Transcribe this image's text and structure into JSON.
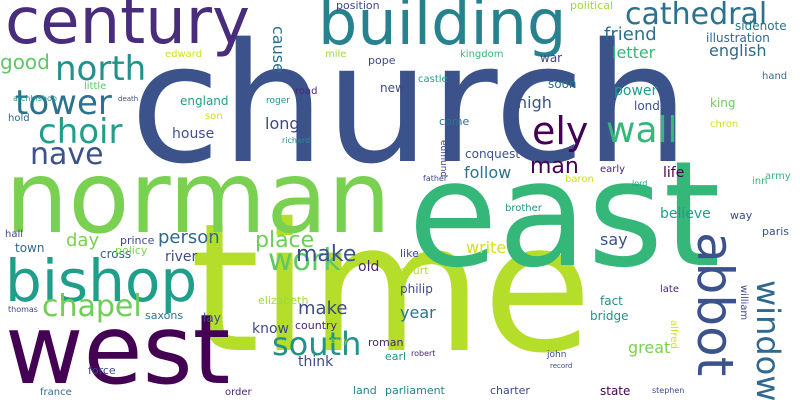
{
  "words": [
    {
      "text": "church",
      "color": "#3b528b",
      "vertical": false
    },
    {
      "text": "time",
      "color": "#b5de2b",
      "vertical": false
    },
    {
      "text": "norman",
      "color": "#7ad151",
      "vertical": false
    },
    {
      "text": "east",
      "color": "#35b779",
      "vertical": false
    },
    {
      "text": "west",
      "color": "#440154",
      "vertical": false
    },
    {
      "text": "building",
      "color": "#26828e",
      "vertical": false
    },
    {
      "text": "century",
      "color": "#472d7b",
      "vertical": false
    },
    {
      "text": "bishop",
      "color": "#1f9e89",
      "vertical": false
    },
    {
      "text": "abbot",
      "color": "#3b528b",
      "vertical": true
    },
    {
      "text": "cathedral",
      "color": "#2c728e",
      "vertical": false
    },
    {
      "text": "window",
      "color": "#31688e",
      "vertical": true
    },
    {
      "text": "north",
      "color": "#21918c",
      "vertical": false
    },
    {
      "text": "tower",
      "color": "#2c728e",
      "vertical": false
    },
    {
      "text": "choir",
      "color": "#1f9e89",
      "vertical": false
    },
    {
      "text": "nave",
      "color": "#3b528b",
      "vertical": false
    },
    {
      "text": "chapel",
      "color": "#6ece58",
      "vertical": false
    },
    {
      "text": "south",
      "color": "#21918c",
      "vertical": false
    },
    {
      "text": "work",
      "color": "#5ec962",
      "vertical": false
    },
    {
      "text": "wall",
      "color": "#35b779",
      "vertical": false
    },
    {
      "text": "ely",
      "color": "#440154",
      "vertical": false
    },
    {
      "text": "good",
      "color": "#5ec962",
      "vertical": false
    },
    {
      "text": "place",
      "color": "#6ece58",
      "vertical": false
    },
    {
      "text": "person",
      "color": "#31688e",
      "vertical": false
    },
    {
      "text": "make",
      "color": "#3e4989",
      "vertical": false
    },
    {
      "text": "make",
      "color": "#3b528b",
      "vertical": false
    },
    {
      "text": "day",
      "color": "#7ad151",
      "vertical": false
    },
    {
      "text": "friend",
      "color": "#2c728e",
      "vertical": false
    },
    {
      "text": "english",
      "color": "#31688e",
      "vertical": false
    },
    {
      "text": "letter",
      "color": "#35b779",
      "vertical": false
    },
    {
      "text": "cause",
      "color": "#2c728e",
      "vertical": true
    },
    {
      "text": "illustration",
      "color": "#31688e",
      "vertical": false
    },
    {
      "text": "sidenote",
      "color": "#2c728e",
      "vertical": false
    },
    {
      "text": "position",
      "color": "#3e4989",
      "vertical": false
    },
    {
      "text": "political",
      "color": "#a0da39",
      "vertical": false
    },
    {
      "text": "edward",
      "color": "#d2e21b",
      "vertical": false
    },
    {
      "text": "mile",
      "color": "#a0da39",
      "vertical": false
    },
    {
      "text": "pope",
      "color": "#3e4989",
      "vertical": false
    },
    {
      "text": "castle",
      "color": "#1fa187",
      "vertical": false
    },
    {
      "text": "kingdom",
      "color": "#35b779",
      "vertical": false
    },
    {
      "text": "war",
      "color": "#3e4989",
      "vertical": false
    },
    {
      "text": "hand",
      "color": "#2c728e",
      "vertical": false
    },
    {
      "text": "new",
      "color": "#3e4989",
      "vertical": false
    },
    {
      "text": "soon",
      "color": "#2c728e",
      "vertical": false
    },
    {
      "text": "little",
      "color": "#5ec962",
      "vertical": false
    },
    {
      "text": "archbishop",
      "color": "#21918c",
      "vertical": false
    },
    {
      "text": "road",
      "color": "#482677",
      "vertical": false
    },
    {
      "text": "power",
      "color": "#1f9e89",
      "vertical": false
    },
    {
      "text": "king",
      "color": "#6ece58",
      "vertical": false
    },
    {
      "text": "england",
      "color": "#1fa187",
      "vertical": false
    },
    {
      "text": "son",
      "color": "#d2e21b",
      "vertical": false
    },
    {
      "text": "hold",
      "color": "#31688e",
      "vertical": false
    },
    {
      "text": "long",
      "color": "#404688",
      "vertical": false
    },
    {
      "text": "high",
      "color": "#3b528b",
      "vertical": false
    },
    {
      "text": "london",
      "color": "#3b528b",
      "vertical": false
    },
    {
      "text": "chron",
      "color": "#d2e21b",
      "vertical": false
    },
    {
      "text": "house",
      "color": "#3b528b",
      "vertical": false
    },
    {
      "text": "come",
      "color": "#2c728e",
      "vertical": false
    },
    {
      "text": "conquest",
      "color": "#3b528b",
      "vertical": false
    },
    {
      "text": "man",
      "color": "#440154",
      "vertical": false
    },
    {
      "text": "follow",
      "color": "#2c728e",
      "vertical": false
    },
    {
      "text": "early",
      "color": "#482677",
      "vertical": false
    },
    {
      "text": "baron",
      "color": "#d2e21b",
      "vertical": false
    },
    {
      "text": "life",
      "color": "#440154",
      "vertical": false
    },
    {
      "text": "army",
      "color": "#35b779",
      "vertical": false
    },
    {
      "text": "inn",
      "color": "#35b779",
      "vertical": false
    },
    {
      "text": "brother",
      "color": "#21918c",
      "vertical": false
    },
    {
      "text": "believe",
      "color": "#1f9e89",
      "vertical": false
    },
    {
      "text": "way",
      "color": "#3e4989",
      "vertical": false
    },
    {
      "text": "paris",
      "color": "#3b528b",
      "vertical": false
    },
    {
      "text": "say",
      "color": "#3b528b",
      "vertical": false
    },
    {
      "text": "write",
      "color": "#d2e21b",
      "vertical": false
    },
    {
      "text": "town",
      "color": "#31688e",
      "vertical": false
    },
    {
      "text": "cross",
      "color": "#355f8d",
      "vertical": false
    },
    {
      "text": "prince",
      "color": "#3e4989",
      "vertical": false
    },
    {
      "text": "policy",
      "color": "#7ad151",
      "vertical": false
    },
    {
      "text": "river",
      "color": "#3e4989",
      "vertical": false
    },
    {
      "text": "old",
      "color": "#482677",
      "vertical": false
    },
    {
      "text": "like",
      "color": "#3e4989",
      "vertical": false
    },
    {
      "text": "court",
      "color": "#b5de2b",
      "vertical": false
    },
    {
      "text": "philip",
      "color": "#3e4989",
      "vertical": false
    },
    {
      "text": "year",
      "color": "#2c728e",
      "vertical": false
    },
    {
      "text": "fact",
      "color": "#21918c",
      "vertical": false
    },
    {
      "text": "bridge",
      "color": "#21918c",
      "vertical": false
    },
    {
      "text": "late",
      "color": "#482677",
      "vertical": false
    },
    {
      "text": "william",
      "color": "#3e4989",
      "vertical": true
    },
    {
      "text": "alfred",
      "color": "#d2e21b",
      "vertical": true
    },
    {
      "text": "great",
      "color": "#7ad151",
      "vertical": false
    },
    {
      "text": "elizabeth",
      "color": "#a0da39",
      "vertical": false
    },
    {
      "text": "country",
      "color": "#482677",
      "vertical": false
    },
    {
      "text": "lay",
      "color": "#3e4989",
      "vertical": false
    },
    {
      "text": "saxons",
      "color": "#2c728e",
      "vertical": false
    },
    {
      "text": "know",
      "color": "#3e4989",
      "vertical": false
    },
    {
      "text": "think",
      "color": "#3e4989",
      "vertical": false
    },
    {
      "text": "roman",
      "color": "#482677",
      "vertical": false
    },
    {
      "text": "earl",
      "color": "#21918c",
      "vertical": false
    },
    {
      "text": "force",
      "color": "#3e4989",
      "vertical": false
    },
    {
      "text": "france",
      "color": "#2c728e",
      "vertical": false
    },
    {
      "text": "order",
      "color": "#482677",
      "vertical": false
    },
    {
      "text": "land",
      "color": "#26828e",
      "vertical": false
    },
    {
      "text": "parliament",
      "color": "#26828e",
      "vertical": false
    },
    {
      "text": "charter",
      "color": "#3e4989",
      "vertical": false
    },
    {
      "text": "state",
      "color": "#440154",
      "vertical": false
    },
    {
      "text": "hall",
      "color": "#3e4989",
      "vertical": false
    },
    {
      "text": "edmund",
      "color": "#3e4989",
      "vertical": true
    },
    {
      "text": "richard",
      "color": "#21918c",
      "vertical": false
    },
    {
      "text": "roger",
      "color": "#21918c",
      "vertical": false
    },
    {
      "text": "death",
      "color": "#3e4989",
      "vertical": false
    },
    {
      "text": "father",
      "color": "#3e4989",
      "vertical": false
    },
    {
      "text": "lord",
      "color": "#1f9e89",
      "vertical": false
    },
    {
      "text": "record",
      "color": "#3e4989",
      "vertical": false
    },
    {
      "text": "henry",
      "color": "#b5de2b",
      "vertical": false
    },
    {
      "text": "robert",
      "color": "#482677",
      "vertical": false
    },
    {
      "text": "john",
      "color": "#3e4989",
      "vertical": false
    },
    {
      "text": "stephen",
      "color": "#3e4989",
      "vertical": false
    },
    {
      "text": "thomas",
      "color": "#3e4989",
      "vertical": false
    }
  ]
}
